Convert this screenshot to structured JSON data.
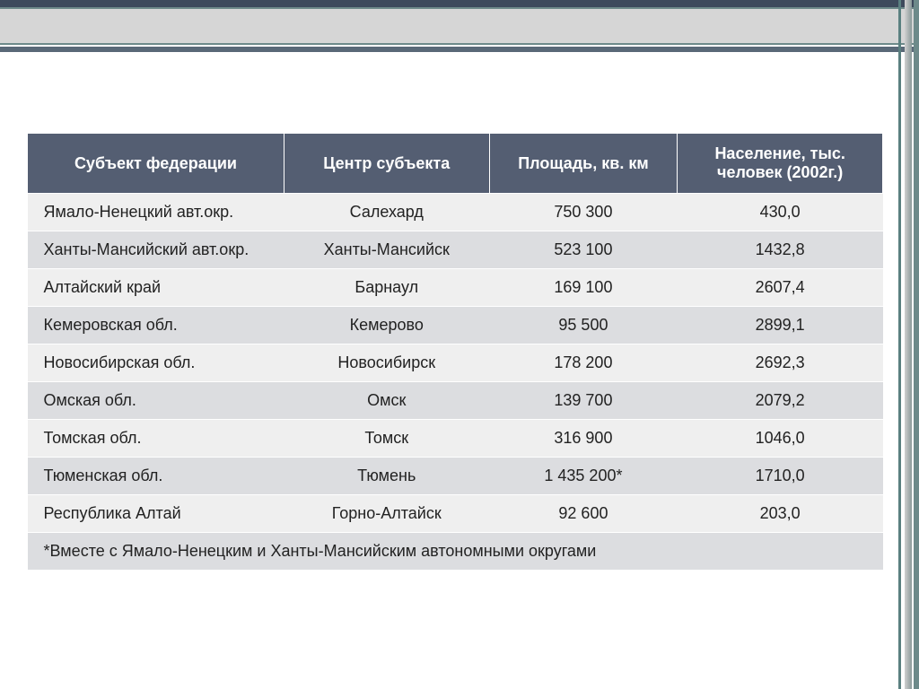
{
  "table": {
    "header_bg": "#545e72",
    "header_color": "#ffffff",
    "row_odd_bg": "#efefef",
    "row_even_bg": "#dcdde0",
    "columns": [
      {
        "key": "subject",
        "label": "Субъект федерации",
        "align": "left",
        "width": "30%"
      },
      {
        "key": "center",
        "label": "Центр субъекта",
        "align": "center",
        "width": "24%"
      },
      {
        "key": "area",
        "label": "Площадь, кв. км",
        "align": "center",
        "width": "22%"
      },
      {
        "key": "pop",
        "label": "Население, тыс. человек (2002г.)",
        "align": "center",
        "width": "24%"
      }
    ],
    "rows": [
      {
        "subject": "Ямало-Ненецкий авт.окр.",
        "center": "Салехард",
        "area": "750 300",
        "pop": "430,0"
      },
      {
        "subject": "Ханты-Мансийский авт.окр.",
        "center": "Ханты-Мансийск",
        "area": "523 100",
        "pop": "1432,8"
      },
      {
        "subject": "Алтайский край",
        "center": "Барнаул",
        "area": "169 100",
        "pop": "2607,4"
      },
      {
        "subject": "Кемеровская обл.",
        "center": "Кемерово",
        "area": "95 500",
        "pop": "2899,1"
      },
      {
        "subject": "Новосибирская обл.",
        "center": "Новосибирск",
        "area": "178 200",
        "pop": "2692,3"
      },
      {
        "subject": "Омская обл.",
        "center": "Омск",
        "area": "139 700",
        "pop": "2079,2"
      },
      {
        "subject": "Томская обл.",
        "center": "Томск",
        "area": "316 900",
        "pop": "1046,0"
      },
      {
        "subject": "Тюменская обл.",
        "center": "Тюмень",
        "area": "1 435 200*",
        "pop": "1710,0"
      },
      {
        "subject": "Республика Алтай",
        "center": "Горно-Алтайск",
        "area": "92 600",
        "pop": "203,0"
      }
    ],
    "footnote": "*Вместе с Ямало-Ненецким и Ханты-Мансийским автономными округами"
  }
}
